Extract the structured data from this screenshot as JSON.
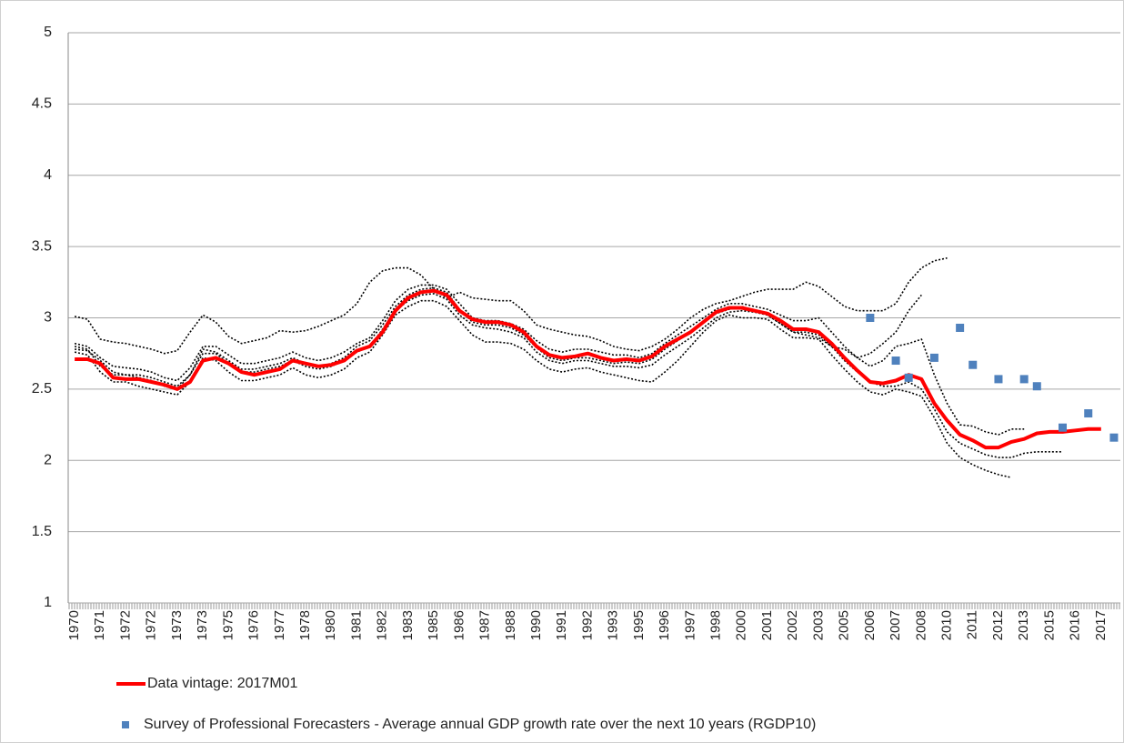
{
  "chart_data": {
    "type": "line",
    "categories": [
      "1970",
      null,
      "1971",
      null,
      "1972",
      null,
      "1972",
      null,
      "1973",
      null,
      "1973",
      null,
      "1975",
      null,
      "1976",
      null,
      "1977",
      null,
      "1978",
      null,
      "1980",
      null,
      "1981",
      null,
      "1982",
      null,
      "1983",
      null,
      "1985",
      null,
      "1986",
      null,
      "1987",
      null,
      "1988",
      null,
      "1990",
      null,
      "1991",
      null,
      "1992",
      null,
      "1993",
      null,
      "1995",
      null,
      "1996",
      null,
      "1997",
      null,
      "1998",
      null,
      "2000",
      null,
      "2001",
      null,
      "2002",
      null,
      "2003",
      null,
      "2005",
      null,
      "2006",
      null,
      "2007",
      null,
      "2008",
      null,
      "2010",
      null,
      "2011",
      null,
      "2012",
      null,
      "2013",
      null,
      "2015",
      null,
      "2016",
      null,
      "2017",
      null
    ],
    "ylim": [
      1,
      5
    ],
    "yticks": [
      1,
      1.5,
      2,
      2.5,
      3,
      3.5,
      4,
      4.5,
      5
    ],
    "grid": true,
    "series": [
      {
        "color": "#000000",
        "line_style": "dotted",
        "values": [
          3.01,
          2.99,
          2.85,
          2.83,
          2.82,
          2.8,
          2.78,
          2.75,
          2.77,
          2.9,
          3.02,
          2.97,
          2.87,
          2.82,
          2.84,
          2.86,
          2.91,
          2.9,
          2.91,
          2.94,
          2.98,
          3.02,
          3.1,
          3.25,
          3.33,
          3.35,
          3.35,
          3.3,
          3.2,
          3.14,
          3.18,
          3.14,
          3.13,
          3.12,
          3.12,
          3.05,
          2.95,
          2.92,
          2.9,
          2.88,
          2.87,
          2.84,
          2.8,
          2.78,
          2.77,
          2.8,
          2.85,
          2.92,
          3.0,
          3.06,
          3.1,
          3.12,
          3.15,
          3.18,
          3.2,
          3.2,
          3.2,
          3.25,
          3.22,
          3.15,
          3.08,
          3.05,
          3.05,
          3.05,
          3.1,
          3.25,
          3.35,
          3.4,
          3.42,
          null,
          null,
          null,
          null,
          null,
          null,
          null,
          null,
          null,
          null,
          null,
          null,
          null
        ]
      },
      {
        "color": "#000000",
        "line_style": "dotted",
        "values": [
          2.76,
          2.74,
          2.62,
          2.55,
          2.55,
          2.52,
          2.5,
          2.48,
          2.46,
          2.55,
          2.72,
          2.7,
          2.62,
          2.56,
          2.56,
          2.58,
          2.6,
          2.65,
          2.6,
          2.58,
          2.6,
          2.64,
          2.72,
          2.76,
          2.88,
          3.02,
          3.08,
          3.12,
          3.12,
          3.08,
          2.98,
          2.88,
          2.83,
          2.83,
          2.82,
          2.78,
          2.7,
          2.64,
          2.62,
          2.64,
          2.65,
          2.62,
          2.6,
          2.58,
          2.56,
          2.55,
          2.62,
          2.7,
          2.8,
          2.9,
          2.98,
          3.02,
          3.0,
          3.0,
          2.99,
          2.92,
          2.86,
          2.86,
          2.85,
          2.74,
          2.64,
          2.55,
          2.48,
          2.46,
          2.5,
          2.48,
          2.45,
          2.3,
          2.12,
          2.02,
          1.97,
          1.93,
          1.9,
          1.88,
          null,
          null,
          null,
          null,
          null,
          null,
          null,
          null
        ]
      },
      {
        "color": "#000000",
        "line_style": "dotted",
        "values": [
          2.78,
          2.77,
          2.7,
          2.62,
          2.6,
          2.6,
          2.58,
          2.55,
          2.52,
          2.6,
          2.75,
          2.75,
          2.68,
          2.62,
          2.62,
          2.64,
          2.66,
          2.7,
          2.66,
          2.64,
          2.66,
          2.7,
          2.76,
          2.8,
          2.92,
          3.05,
          3.12,
          3.16,
          3.17,
          3.13,
          3.02,
          2.95,
          2.93,
          2.92,
          2.9,
          2.86,
          2.76,
          2.7,
          2.68,
          2.7,
          2.7,
          2.68,
          2.66,
          2.66,
          2.65,
          2.67,
          2.74,
          2.8,
          2.86,
          2.93,
          3.0,
          3.04,
          3.05,
          3.04,
          3.02,
          2.96,
          2.9,
          2.9,
          2.88,
          2.8,
          2.7,
          2.62,
          2.55,
          2.52,
          2.52,
          2.55,
          2.5,
          2.36,
          2.2,
          2.12,
          2.08,
          2.04,
          2.02,
          2.02,
          2.05,
          2.06,
          2.06,
          2.06,
          null,
          null,
          null,
          null
        ]
      },
      {
        "color": "#000000",
        "line_style": "dotted",
        "values": [
          2.82,
          2.8,
          2.72,
          2.66,
          2.65,
          2.64,
          2.62,
          2.58,
          2.56,
          2.65,
          2.8,
          2.8,
          2.74,
          2.68,
          2.68,
          2.7,
          2.72,
          2.76,
          2.72,
          2.7,
          2.72,
          2.76,
          2.82,
          2.86,
          2.98,
          3.12,
          3.2,
          3.23,
          3.23,
          3.2,
          3.1,
          3.0,
          2.98,
          2.98,
          2.96,
          2.92,
          2.84,
          2.78,
          2.76,
          2.78,
          2.78,
          2.76,
          2.74,
          2.74,
          2.72,
          2.75,
          2.82,
          2.88,
          2.94,
          3.0,
          3.06,
          3.1,
          3.1,
          3.08,
          3.06,
          3.02,
          2.98,
          2.98,
          3.0,
          2.9,
          2.8,
          2.72,
          2.66,
          2.7,
          2.8,
          2.82,
          2.85,
          2.6,
          2.4,
          2.25,
          2.24,
          2.2,
          2.18,
          2.22,
          2.22,
          null,
          null,
          null,
          null,
          null,
          null,
          null
        ]
      },
      {
        "color": "#000000",
        "line_style": "dotted",
        "values": [
          2.8,
          2.78,
          2.66,
          2.6,
          2.6,
          2.58,
          2.56,
          2.52,
          2.5,
          2.6,
          2.78,
          2.76,
          2.7,
          2.64,
          2.64,
          2.66,
          2.68,
          2.72,
          2.68,
          2.66,
          2.68,
          2.72,
          2.8,
          2.84,
          2.95,
          3.08,
          3.16,
          3.2,
          3.21,
          3.18,
          3.06,
          2.97,
          2.95,
          2.95,
          2.93,
          2.88,
          2.79,
          2.72,
          2.7,
          2.72,
          2.72,
          2.7,
          2.68,
          2.69,
          2.68,
          2.71,
          2.78,
          2.84,
          2.9,
          2.97,
          3.03,
          3.06,
          3.08,
          3.05,
          3.02,
          2.96,
          2.9,
          2.88,
          2.86,
          2.8,
          2.78,
          2.72,
          2.75,
          2.82,
          2.9,
          3.05,
          3.16,
          null,
          null,
          null,
          null,
          null,
          null,
          null,
          null,
          null,
          null,
          null,
          null,
          null,
          null,
          null
        ]
      },
      {
        "name": "Data vintage: 2017M01",
        "color": "#ff0000",
        "line_style": "solid",
        "values": [
          2.71,
          2.71,
          2.68,
          2.58,
          2.57,
          2.57,
          2.55,
          2.53,
          2.5,
          2.55,
          2.7,
          2.72,
          2.68,
          2.62,
          2.6,
          2.62,
          2.64,
          2.7,
          2.68,
          2.66,
          2.67,
          2.7,
          2.77,
          2.8,
          2.9,
          3.05,
          3.14,
          3.18,
          3.19,
          3.16,
          3.05,
          2.99,
          2.97,
          2.97,
          2.95,
          2.9,
          2.8,
          2.74,
          2.72,
          2.73,
          2.75,
          2.72,
          2.7,
          2.71,
          2.7,
          2.73,
          2.8,
          2.85,
          2.9,
          2.97,
          3.04,
          3.07,
          3.07,
          3.05,
          3.03,
          2.98,
          2.92,
          2.92,
          2.9,
          2.82,
          2.72,
          2.63,
          2.55,
          2.54,
          2.56,
          2.6,
          2.57,
          2.4,
          2.28,
          2.18,
          2.14,
          2.09,
          2.09,
          2.13,
          2.15,
          2.19,
          2.2,
          2.2,
          2.21,
          2.22,
          2.22,
          null
        ]
      },
      {
        "name": "Survey of Professional Forecasters - Average annual GDP growth rate over the next 10 years (RGDP10)",
        "color": "#4f81bd",
        "type": "scatter",
        "values": [
          null,
          null,
          null,
          null,
          null,
          null,
          null,
          null,
          null,
          null,
          null,
          null,
          null,
          null,
          null,
          null,
          null,
          null,
          null,
          null,
          null,
          null,
          null,
          null,
          null,
          null,
          null,
          null,
          null,
          null,
          null,
          null,
          null,
          null,
          null,
          null,
          null,
          null,
          null,
          null,
          null,
          null,
          null,
          null,
          null,
          null,
          null,
          null,
          null,
          null,
          null,
          null,
          null,
          null,
          null,
          null,
          null,
          null,
          null,
          null,
          null,
          null,
          3.0,
          null,
          2.7,
          2.58,
          null,
          2.72,
          null,
          2.93,
          2.67,
          null,
          2.57,
          null,
          2.57,
          2.52,
          null,
          2.23,
          null,
          2.33,
          null,
          2.16
        ]
      }
    ]
  }
}
